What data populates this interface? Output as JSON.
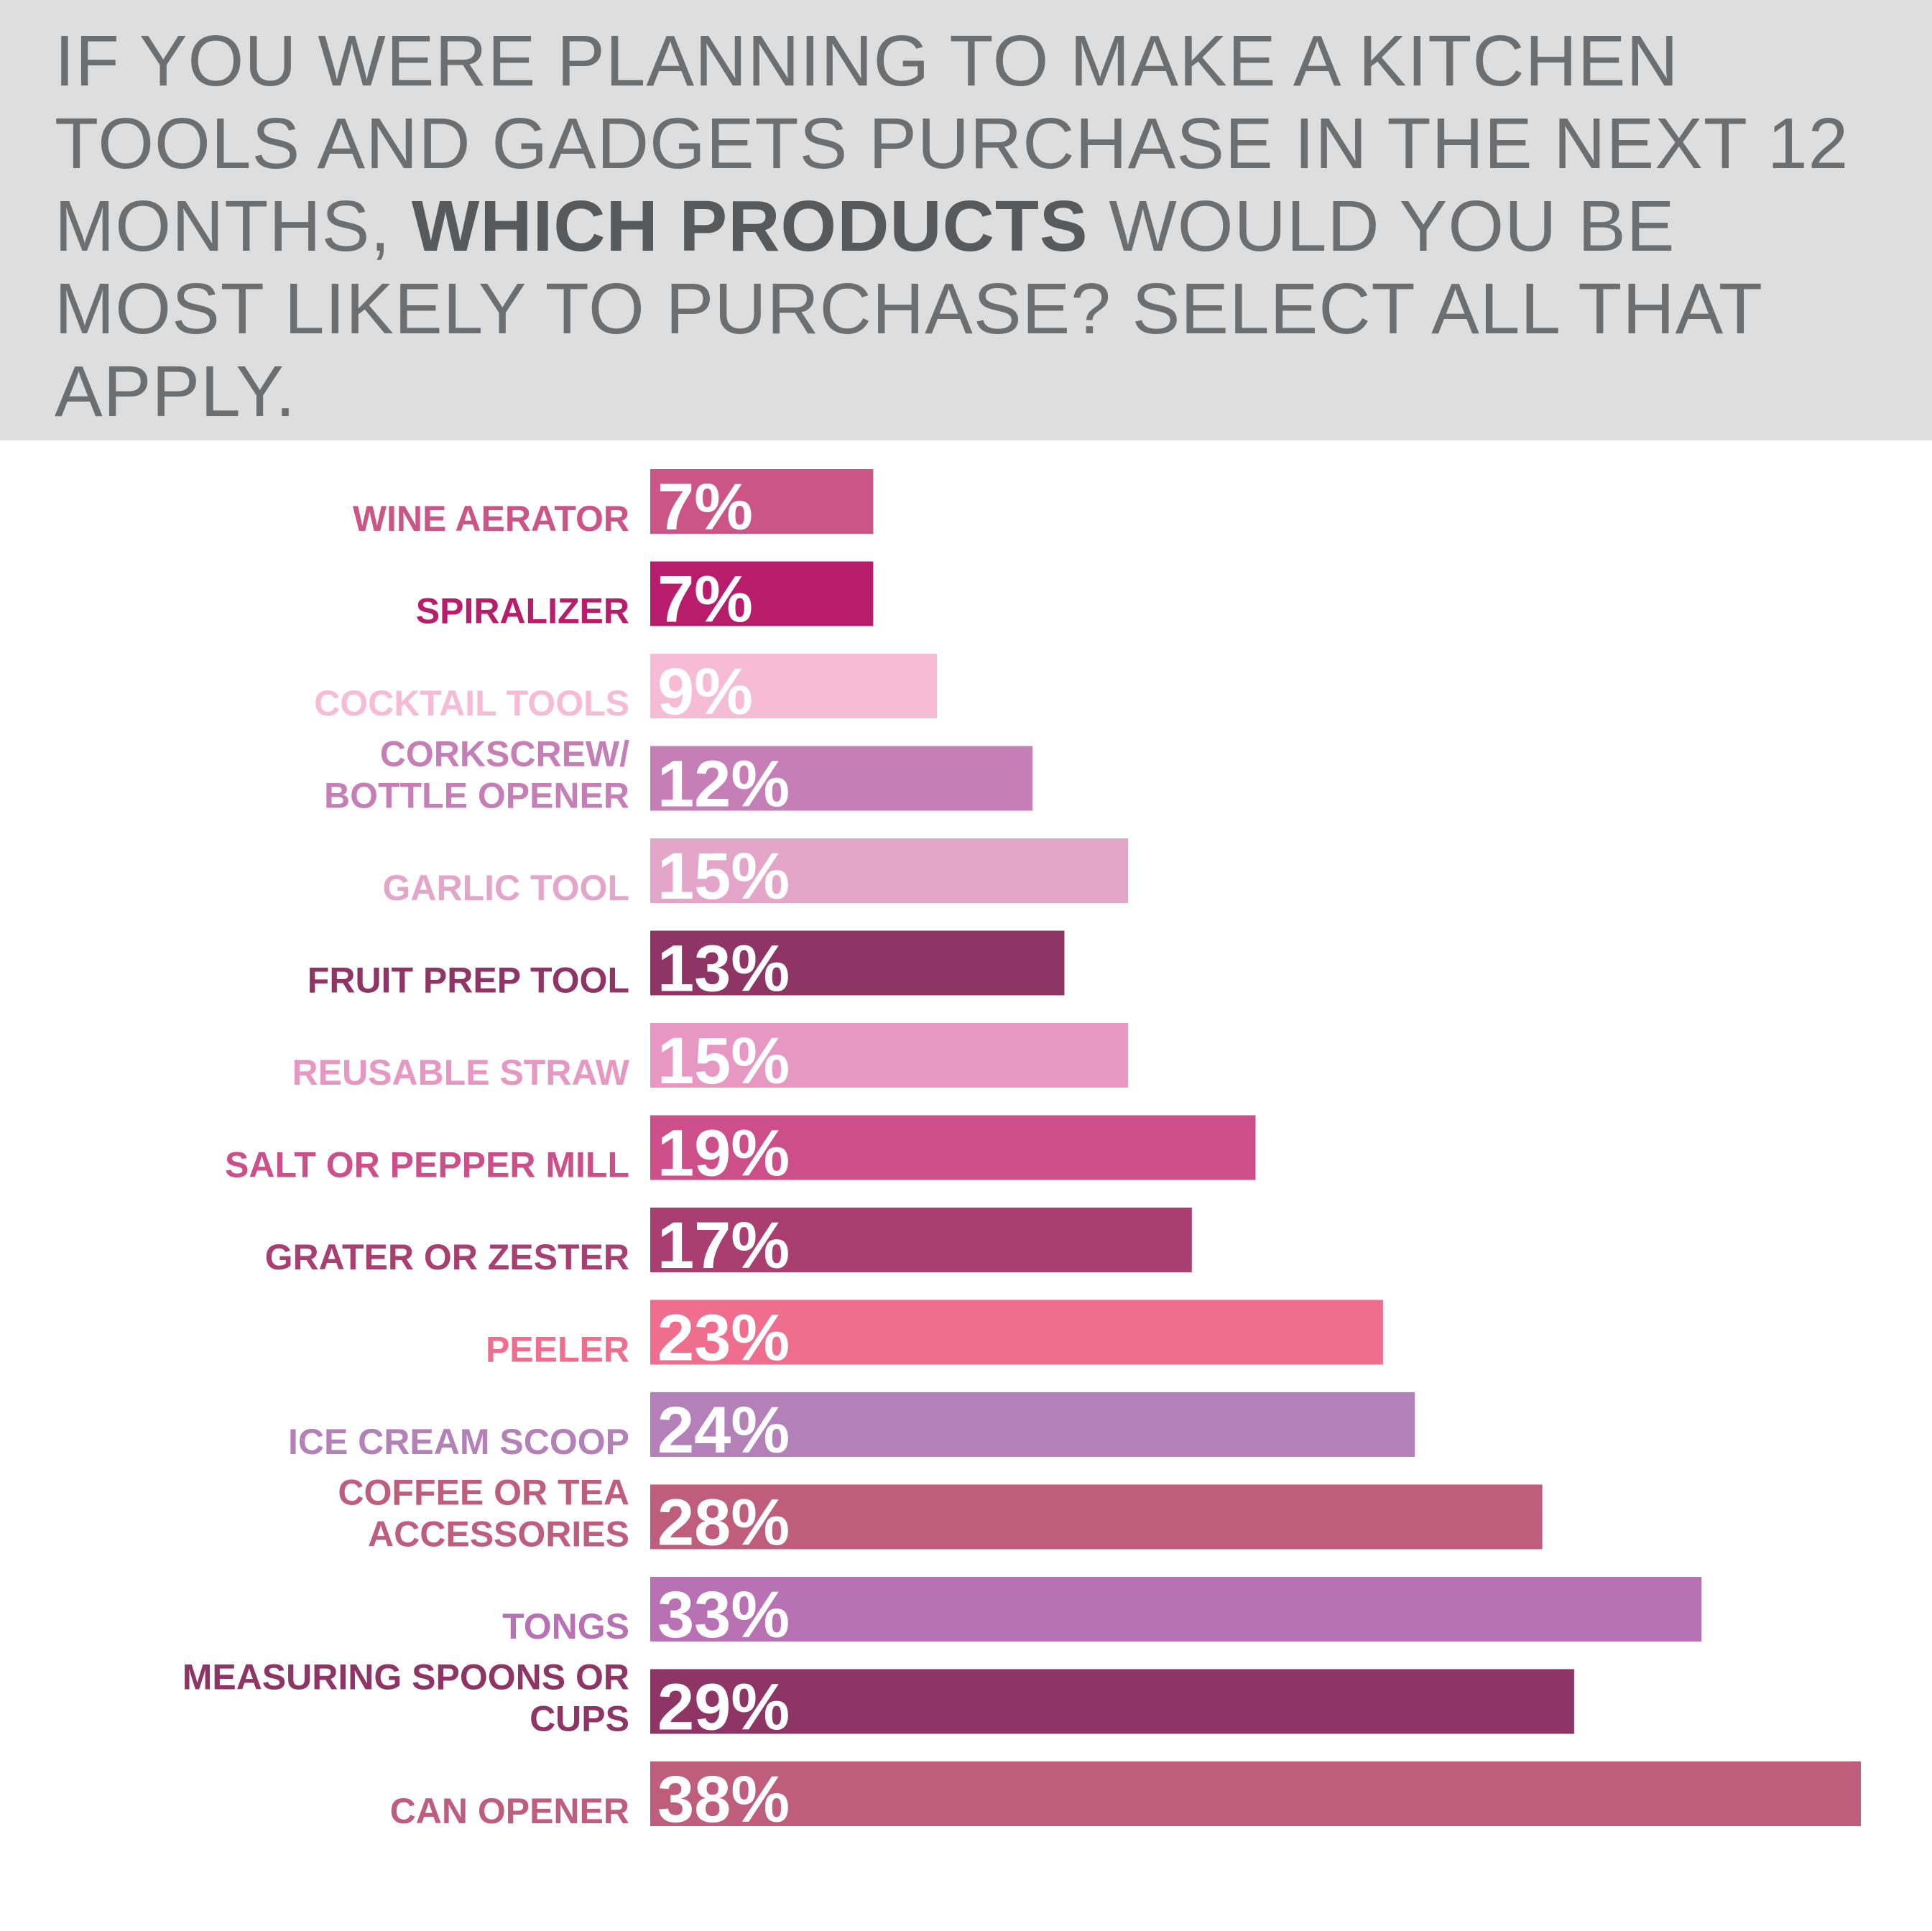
{
  "question": {
    "part1": "IF YOU WERE PLANNING TO MAKE A KITCHEN TOOLS AND GADGETS PURCHASE IN THE NEXT 12 MONTHS,",
    "emphasis": "WHICH PRODUCTS",
    "part2": "WOULD YOU BE MOST LIKELY TO PURCHASE? SELECT ALL THAT APPLY."
  },
  "chart_data": {
    "type": "bar",
    "orientation": "horizontal",
    "categories": [
      "WINE AERATOR",
      "SPIRALIZER",
      "COCKTAIL TOOLS",
      "CORKSCREW/ BOTTLE OPENER",
      "GARLIC TOOL",
      "FRUIT PREP TOOL",
      "REUSABLE STRAW",
      "SALT OR PEPPER MILL",
      "GRATER OR ZESTER",
      "PEELER",
      "ICE CREAM SCOOP",
      "COFFEE OR TEA ACCESSORIES",
      "TONGS",
      "MEASURING SPOONS OR CUPS",
      "CAN OPENER"
    ],
    "label_lines": [
      [
        "WINE AERATOR"
      ],
      [
        "SPIRALIZER"
      ],
      [
        "COCKTAIL TOOLS"
      ],
      [
        "CORKSCREW/",
        "BOTTLE OPENER"
      ],
      [
        "GARLIC TOOL"
      ],
      [
        "FRUIT PREP TOOL"
      ],
      [
        "REUSABLE STRAW"
      ],
      [
        "SALT OR PEPPER MILL"
      ],
      [
        "GRATER OR ZESTER"
      ],
      [
        "PEELER"
      ],
      [
        "ICE CREAM SCOOP"
      ],
      [
        "COFFEE OR TEA",
        "ACCESSORIES"
      ],
      [
        "TONGS"
      ],
      [
        "MEASURING SPOONS OR",
        "CUPS"
      ],
      [
        "CAN OPENER"
      ]
    ],
    "values": [
      7,
      7,
      9,
      12,
      15,
      13,
      15,
      19,
      17,
      23,
      24,
      28,
      33,
      29,
      38
    ],
    "value_labels": [
      "7%",
      "7%",
      "9%",
      "12%",
      "15%",
      "13%",
      "15%",
      "19%",
      "17%",
      "23%",
      "24%",
      "28%",
      "33%",
      "29%",
      "38%"
    ],
    "colors": [
      "#cc5588",
      "#b81d6b",
      "#f7bcd5",
      "#c67eb6",
      "#e4a6c8",
      "#8e3565",
      "#e798c2",
      "#cc4f89",
      "#a93f70",
      "#ef6e8e",
      "#b381b7",
      "#be5d7c",
      "#b872b3",
      "#8e3565",
      "#be5d7c"
    ],
    "unit": "%",
    "xlim": [
      0,
      38
    ],
    "grid": false,
    "legend": "none"
  }
}
